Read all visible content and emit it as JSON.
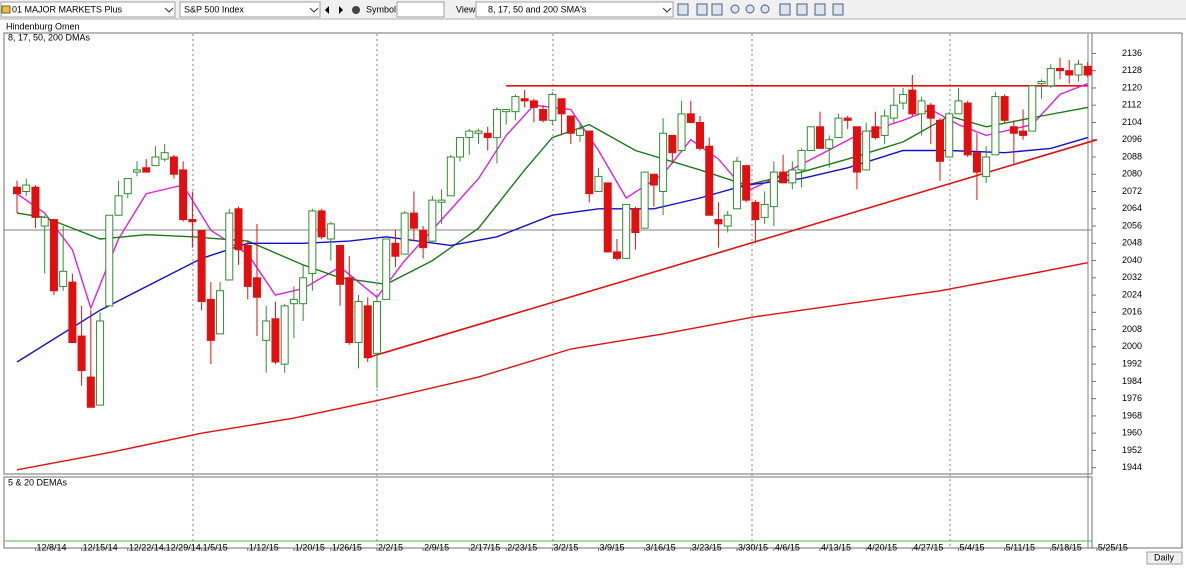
{
  "toolbar": {
    "portfolio": "01 MAJOR MARKETS Plus",
    "index": "S&P 500 Index",
    "symbol_label": "Symbol:",
    "view_label": "View:",
    "view": "8, 17, 50 and 200 SMA's"
  },
  "study_title": "Hindenburg Omen",
  "chart_data": {
    "type": "candlestick",
    "title": "8, 17, 50, 200 DMAs",
    "categories": [
      null,
      null,
      "12/8/14",
      null,
      null,
      null,
      null,
      "12/15/14",
      null,
      null,
      null,
      null,
      "12/22/14",
      null,
      null,
      null,
      "12/29/14",
      null,
      null,
      null,
      "1/5/15",
      null,
      null,
      null,
      null,
      "1/12/15",
      null,
      null,
      null,
      null,
      "1/20/15",
      null,
      null,
      null,
      "1/26/15",
      null,
      null,
      null,
      null,
      "2/2/15",
      null,
      null,
      null,
      null,
      "2/9/15",
      null,
      null,
      null,
      null,
      "2/17/15",
      null,
      null,
      null,
      "2/23/15",
      null,
      null,
      null,
      null,
      "3/2/15",
      null,
      null,
      null,
      null,
      "3/9/15",
      null,
      null,
      null,
      null,
      "3/16/15",
      null,
      null,
      null,
      null,
      "3/23/15",
      null,
      null,
      null,
      null,
      "3/30/15",
      null,
      null,
      null,
      "4/6/15",
      null,
      null,
      null,
      null,
      "4/13/15",
      null,
      null,
      null,
      null,
      "4/20/15",
      null,
      null,
      null,
      null,
      "4/27/15",
      null,
      null,
      null,
      null,
      "5/4/15",
      null,
      null,
      null,
      null,
      "5/11/15",
      null,
      null,
      null,
      null,
      "5/18/15",
      null,
      null,
      null,
      null,
      "5/25/15"
    ],
    "open": [
      2074,
      2072,
      2074,
      2056,
      2059,
      2028,
      2030,
      2005,
      1986,
      1973,
      2019,
      2061,
      2071,
      2081,
      2083,
      2084,
      2087,
      2088,
      2082,
      2059,
      2054,
      2022,
      2006,
      2031,
      2064,
      2047,
      2032,
      2003,
      2013,
      1992,
      2020,
      2020,
      2034,
      2063,
      2050,
      2047,
      2032,
      2002,
      2019,
      1997,
      2022,
      2048,
      2043,
      2062,
      2054,
      2049,
      2067,
      2070,
      2088,
      2097,
      2099,
      2099,
      2097,
      2109,
      2109,
      2115,
      2114,
      2110,
      2105,
      2115,
      2107,
      2098,
      2100,
      2072,
      2076,
      2044,
      2041,
      2064,
      2055,
      2080,
      2072,
      2098,
      2091,
      2108,
      2104,
      2093,
      2059,
      2056,
      2064,
      2084,
      2067,
      2060,
      2065,
      2081,
      2076,
      2082,
      2091,
      2102,
      2092,
      2097,
      2106,
      2102,
      2082,
      2102,
      2098,
      2106,
      2113,
      2119,
      2108,
      2112,
      2105,
      2088,
      2108,
      2113,
      2090,
      2079,
      2089,
      2116,
      2102,
      2100,
      2100,
      2122,
      2121,
      2129,
      2128,
      2126,
      2130,
      null
    ],
    "high": [
      2077,
      2078,
      2075,
      2061,
      2059,
      2056,
      2034,
      2019,
      2017,
      2016,
      2061,
      2077,
      2078,
      2086,
      2087,
      2093,
      2094,
      2089,
      2086,
      2072,
      2054,
      2030,
      2030,
      2064,
      2065,
      2049,
      2057,
      2019,
      2021,
      2020,
      2028,
      2038,
      2064,
      2064,
      2058,
      2047,
      2042,
      2024,
      2023,
      2023,
      2050,
      2054,
      2063,
      2072,
      2056,
      2070,
      2073,
      2089,
      2097,
      2101,
      2101,
      2102,
      2111,
      2110,
      2117,
      2119,
      2115,
      2112,
      2118,
      2115,
      2107,
      2104,
      2100,
      2083,
      2076,
      2050,
      2066,
      2065,
      2081,
      2080,
      2106,
      2098,
      2114,
      2114,
      2107,
      2097,
      2067,
      2063,
      2088,
      2084,
      2068,
      2072,
      2086,
      2089,
      2086,
      2092,
      2102,
      2109,
      2098,
      2108,
      2107,
      2102,
      2104,
      2109,
      2110,
      2120,
      2120,
      2126,
      2116,
      2113,
      2106,
      2109,
      2120,
      2114,
      2099,
      2093,
      2118,
      2117,
      2105,
      2110,
      2121,
      2124,
      2131,
      2134,
      2133,
      2133,
      2132,
      null
    ],
    "low": [
      2062,
      2070,
      2055,
      2034,
      2024,
      2026,
      2002,
      1982,
      1972,
      1973,
      2019,
      2061,
      2069,
      2079,
      2081,
      2084,
      2086,
      2078,
      2058,
      2046,
      2017,
      1992,
      2006,
      2031,
      2038,
      2022,
      2005,
      1988,
      1992,
      1988,
      2004,
      2012,
      2026,
      2050,
      2040,
      2019,
      2001,
      1990,
      1993,
      1981,
      2022,
      2037,
      2043,
      2049,
      2041,
      2048,
      2057,
      2070,
      2086,
      2089,
      2094,
      2091,
      2085,
      2103,
      2105,
      2111,
      2104,
      2104,
      2103,
      2098,
      2094,
      2095,
      2067,
      2072,
      2044,
      2040,
      2041,
      2045,
      2055,
      2065,
      2061,
      2085,
      2091,
      2104,
      2091,
      2061,
      2046,
      2053,
      2064,
      2067,
      2048,
      2057,
      2056,
      2076,
      2073,
      2074,
      2091,
      2092,
      2083,
      2097,
      2101,
      2073,
      2082,
      2096,
      2094,
      2104,
      2110,
      2107,
      2098,
      2094,
      2077,
      2088,
      2108,
      2088,
      2068,
      2076,
      2089,
      2104,
      2085,
      2096,
      2100,
      2115,
      2120,
      2124,
      2122,
      2123,
      2125,
      null
    ],
    "close": [
      2071,
      2075,
      2060,
      2060,
      2026,
      2035,
      2002,
      1989,
      1972,
      2012,
      2061,
      2070,
      2078,
      2082,
      2081,
      2088,
      2090,
      2080,
      2059,
      2058,
      2021,
      2003,
      2026,
      2062,
      2045,
      2028,
      2023,
      2012,
      1993,
      2019,
      2022,
      2032,
      2063,
      2051,
      2057,
      2029,
      2002,
      2021,
      1995,
      2021,
      2050,
      2042,
      2062,
      2055,
      2046,
      2068,
      2068,
      2088,
      2097,
      2100,
      2100,
      2097,
      2110,
      2110,
      2116,
      2114,
      2111,
      2105,
      2117,
      2108,
      2099,
      2101,
      2071,
      2079,
      2044,
      2041,
      2066,
      2053,
      2081,
      2075,
      2099,
      2090,
      2108,
      2104,
      2092,
      2061,
      2057,
      2061,
      2086,
      2068,
      2059,
      2066,
      2081,
      2076,
      2082,
      2091,
      2102,
      2092,
      2096,
      2106,
      2105,
      2081,
      2100,
      2097,
      2107,
      2112,
      2117,
      2108,
      2114,
      2106,
      2086,
      2108,
      2114,
      2089,
      2081,
      2088,
      2116,
      2105,
      2099,
      2098,
      2121,
      2123,
      2129,
      2128,
      2126,
      2131,
      2126,
      null
    ],
    "up_color": "#2f8f2f",
    "down_color": "#e01010",
    "ylim": [
      1942,
      2145
    ],
    "yticks": [
      1944,
      1952,
      1960,
      1968,
      1976,
      1984,
      1992,
      2000,
      2008,
      2016,
      2024,
      2032,
      2040,
      2048,
      2056,
      2064,
      2072,
      2080,
      2088,
      2096,
      2104,
      2112,
      2120,
      2128,
      2136
    ],
    "moving_averages": [
      {
        "color": "#e020e0",
        "x": [
          0,
          3,
          6,
          8,
          11,
          14,
          18,
          21,
          25,
          28,
          31,
          35,
          39,
          42,
          46,
          50,
          53,
          56,
          60,
          63,
          66,
          70,
          73,
          76,
          79,
          82,
          87,
          91,
          96,
          99,
          102,
          105,
          110,
          113,
          116
        ],
        "values": [
          2071,
          2062,
          2045,
          2018,
          2050,
          2071,
          2075,
          2054,
          2043,
          2024,
          2027,
          2037,
          2023,
          2040,
          2059,
          2078,
          2098,
          2112,
          2110,
          2091,
          2069,
          2080,
          2096,
          2087,
          2072,
          2078,
          2089,
          2098,
          2105,
          2110,
          2103,
          2098,
          2103,
          2117,
          2122
        ]
      },
      {
        "color": "#1a7a1a",
        "x": [
          0,
          3,
          9,
          14,
          19,
          25,
          31,
          35,
          40,
          45,
          50,
          55,
          58,
          62,
          67,
          74,
          79,
          85,
          90,
          96,
          101,
          105,
          111,
          116
        ],
        "values": [
          2062,
          2060,
          2050,
          2052,
          2051,
          2049,
          2038,
          2032,
          2029,
          2040,
          2055,
          2082,
          2097,
          2103,
          2091,
          2082,
          2075,
          2081,
          2087,
          2095,
          2107,
          2102,
          2107,
          2111
        ]
      },
      {
        "color": "#1010d0",
        "x": [
          0,
          9,
          20,
          25,
          31,
          36,
          40,
          47,
          52,
          58,
          63,
          69,
          74,
          79,
          85,
          90,
          96,
          101,
          107,
          112,
          116
        ],
        "values": [
          1993,
          2017,
          2041,
          2048,
          2048,
          2049,
          2051,
          2047,
          2051,
          2061,
          2064,
          2064,
          2069,
          2075,
          2078,
          2083,
          2091,
          2091,
          2090,
          2092,
          2097
        ]
      },
      {
        "color": "#e01010",
        "x": [
          0,
          10,
          20,
          30,
          40,
          50,
          60,
          70,
          80,
          90,
          100,
          110,
          116
        ],
        "values": [
          1943,
          1951,
          1960,
          1967,
          1976,
          1986,
          1999,
          2006,
          2014,
          2020,
          2026,
          2034,
          2039
        ]
      }
    ],
    "trend_lines": [
      {
        "color": "#e01010",
        "x": [
          53,
          116
        ],
        "values": [
          2121,
          2121
        ]
      },
      {
        "color": "#e01010",
        "x": [
          38,
          117
        ],
        "values": [
          1995,
          2096
        ]
      }
    ]
  },
  "lower_panel": {
    "title": "5 & 20 DEMAs"
  },
  "period": "Daily"
}
